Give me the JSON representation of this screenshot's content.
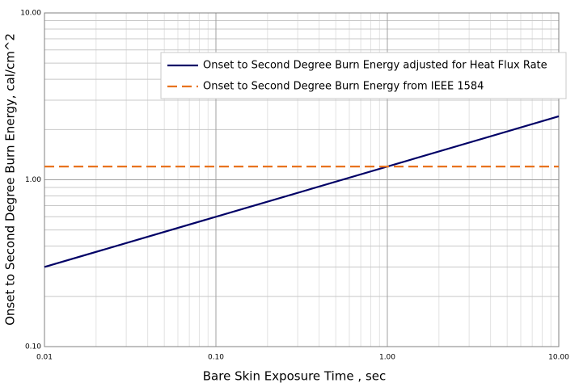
{
  "chart_data": {
    "type": "line",
    "xlabel": "Bare Skin Exposure Time , sec",
    "ylabel": "Onset to Second Degree Burn Energy, cal/cm^2",
    "x": [
      0.01,
      10
    ],
    "series": [
      {
        "name": "Onset to Second Degree Burn Energy adjusted for Heat Flux Rate",
        "color": "#000066",
        "dash": false,
        "values": [
          0.3,
          2.4
        ]
      },
      {
        "name": "Onset to Second Degree Burn Energy from IEEE 1584",
        "color": "#e8731e",
        "dash": true,
        "values": [
          1.2,
          1.2
        ]
      }
    ],
    "xscale": "log",
    "yscale": "log",
    "xlim": [
      0.01,
      10
    ],
    "ylim": [
      0.1,
      10
    ],
    "xticks": [
      {
        "value": 0.01,
        "label": "0.01"
      },
      {
        "value": 0.1,
        "label": "0.10"
      },
      {
        "value": 1,
        "label": "1.00"
      },
      {
        "value": 10,
        "label": "10.00"
      }
    ],
    "yticks": [
      {
        "value": 0.1,
        "label": "0.10"
      },
      {
        "value": 1,
        "label": "1.00"
      },
      {
        "value": 10,
        "label": "10.00"
      }
    ],
    "x_minor_ticks": [
      0.02,
      0.03,
      0.04,
      0.05,
      0.06,
      0.07,
      0.08,
      0.09,
      0.2,
      0.3,
      0.4,
      0.5,
      0.6,
      0.7,
      0.8,
      0.9,
      2,
      3,
      4,
      5,
      6,
      7,
      8,
      9
    ],
    "y_minor_ticks": [
      0.2,
      0.3,
      0.4,
      0.5,
      0.6,
      0.7,
      0.8,
      0.9,
      2,
      3,
      4,
      5,
      6,
      7,
      8,
      9
    ],
    "grid": true,
    "legend": "upper right"
  }
}
